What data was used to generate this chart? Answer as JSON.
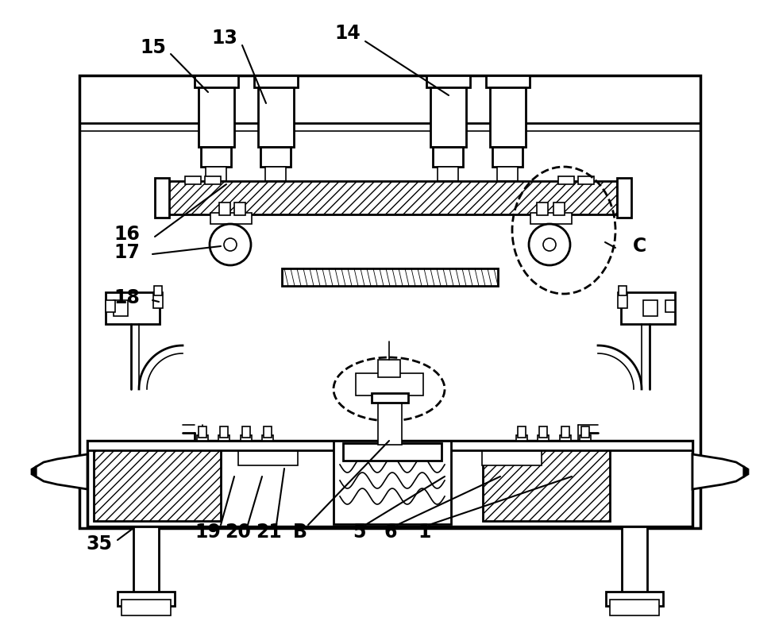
{
  "bg_color": "#ffffff",
  "line_color": "#000000",
  "figsize": [
    9.81,
    7.87
  ],
  "dpi": 100,
  "lw_main": 2.0,
  "lw_thin": 1.2,
  "lw_thick": 2.5
}
